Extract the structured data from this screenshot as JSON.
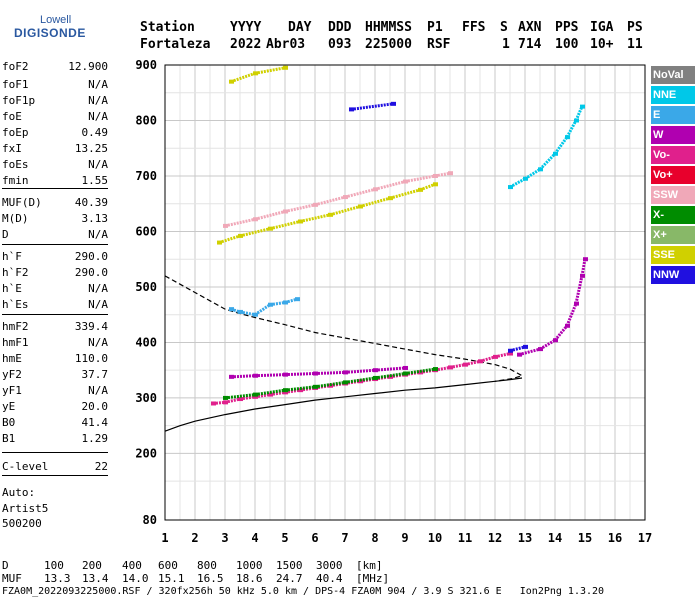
{
  "logo": {
    "line1": "Lowell",
    "line2": "DIGISONDE"
  },
  "header": {
    "labels": [
      "Station",
      "YYYY",
      "DAY",
      "DDD",
      "HHMMSS",
      "P1",
      "FFS",
      "S",
      "AXN",
      "PPS",
      "IGA",
      "PS"
    ],
    "values": [
      "Fortaleza",
      "2022",
      "Abr03",
      "093",
      "225000",
      "RSF",
      "1",
      "714",
      "100",
      "10+",
      "11"
    ]
  },
  "params": [
    {
      "key": "foF2",
      "value": "12.900"
    },
    {
      "key": "foF1",
      "value": "N/A"
    },
    {
      "key": "foF1p",
      "value": "N/A"
    },
    {
      "key": "foE",
      "value": "N/A"
    },
    {
      "key": "foEp",
      "value": "0.49"
    },
    {
      "key": "fxI",
      "value": "13.25"
    },
    {
      "key": "foEs",
      "value": "N/A"
    },
    {
      "key": "fmin",
      "value": "1.55"
    },
    {
      "key": "MUF(D)",
      "value": "40.39"
    },
    {
      "key": "M(D)",
      "value": "3.13"
    },
    {
      "key": "D",
      "value": "N/A"
    },
    {
      "key": "h`F",
      "value": "290.0"
    },
    {
      "key": "h`F2",
      "value": "290.0"
    },
    {
      "key": "h`E",
      "value": "N/A"
    },
    {
      "key": "h`Es",
      "value": "N/A"
    },
    {
      "key": "hmF2",
      "value": "339.4"
    },
    {
      "key": "hmF1",
      "value": "N/A"
    },
    {
      "key": "hmE",
      "value": "110.0"
    },
    {
      "key": "yF2",
      "value": "37.7"
    },
    {
      "key": "yF1",
      "value": "N/A"
    },
    {
      "key": "yE",
      "value": "20.0"
    },
    {
      "key": "B0",
      "value": "41.4"
    },
    {
      "key": "B1",
      "value": "1.29"
    },
    {
      "key": "C-level",
      "value": "22"
    }
  ],
  "auto": {
    "line1": "Auto:",
    "line2": "Artist5",
    "line3": "500200"
  },
  "legend": [
    {
      "label": "NoVal",
      "color": "#808080"
    },
    {
      "label": "NNE",
      "color": "#00c8e8"
    },
    {
      "label": "E",
      "color": "#3aa8e8"
    },
    {
      "label": "W",
      "color": "#b000b0"
    },
    {
      "label": "Vo-",
      "color": "#e0208c"
    },
    {
      "label": "Vo+",
      "color": "#e8002c"
    },
    {
      "label": "SSW",
      "color": "#f0a8b8"
    },
    {
      "label": "X-",
      "color": "#008c00"
    },
    {
      "label": "X+",
      "color": "#88b868"
    },
    {
      "label": "SSE",
      "color": "#d0d000"
    },
    {
      "label": "NNW",
      "color": "#2010e0"
    }
  ],
  "footer": {
    "d_label": "D",
    "d_values": [
      "100",
      "200",
      "400",
      "600",
      "800",
      "1000",
      "1500",
      "3000",
      "[km]"
    ],
    "muf_label": "MUF",
    "muf_values": [
      "13.3",
      "13.4",
      "14.0",
      "15.1",
      "16.5",
      "18.6",
      "24.7",
      "40.4",
      "[MHz]"
    ],
    "file_line": "FZA0M_2022093225000.RSF / 320fx256h 50 kHz 5.0 km / DPS-4 FZA0M 904 / 3.9 S 321.6 E   Ion2Png 1.3.20"
  },
  "chart_data": {
    "type": "scatter",
    "xlabel": "",
    "ylabel": "",
    "xlim": [
      1,
      17
    ],
    "ylim": [
      80,
      900
    ],
    "x_ticks": [
      "1",
      "2",
      "3",
      "4",
      "5",
      "6",
      "7",
      "8",
      "9",
      "10",
      "11",
      "12",
      "13",
      "14",
      "15",
      "16",
      "17"
    ],
    "y_ticks": [
      "80",
      "200",
      "300",
      "400",
      "500",
      "600",
      "700",
      "800",
      "900"
    ],
    "grid": true,
    "series": [
      {
        "name": "Vo-",
        "color": "#e0208c",
        "points": [
          [
            2.6,
            290
          ],
          [
            3.0,
            292
          ],
          [
            3.5,
            298
          ],
          [
            4.0,
            302
          ],
          [
            4.5,
            306
          ],
          [
            5.0,
            310
          ],
          [
            5.5,
            314
          ],
          [
            6.0,
            318
          ],
          [
            6.5,
            322
          ],
          [
            7.0,
            326
          ],
          [
            7.5,
            330
          ],
          [
            8.0,
            334
          ],
          [
            8.5,
            338
          ],
          [
            9.0,
            342
          ],
          [
            9.5,
            346
          ],
          [
            10.0,
            350
          ],
          [
            10.5,
            355
          ],
          [
            11.0,
            360
          ],
          [
            11.5,
            366
          ],
          [
            12.0,
            374
          ],
          [
            12.5,
            380
          ]
        ]
      },
      {
        "name": "W",
        "color": "#b000b0",
        "points": [
          [
            3.2,
            338
          ],
          [
            4.0,
            340
          ],
          [
            5.0,
            342
          ],
          [
            6.0,
            344
          ],
          [
            7.0,
            346
          ],
          [
            8.0,
            350
          ],
          [
            9.0,
            354
          ],
          [
            12.8,
            378
          ],
          [
            13.5,
            388
          ],
          [
            14.0,
            404
          ],
          [
            14.4,
            430
          ],
          [
            14.7,
            470
          ],
          [
            14.9,
            520
          ],
          [
            15.0,
            550
          ]
        ]
      },
      {
        "name": "X-",
        "color": "#008c00",
        "points": [
          [
            3.0,
            300
          ],
          [
            4.0,
            306
          ],
          [
            5.0,
            314
          ],
          [
            6.0,
            320
          ],
          [
            7.0,
            328
          ],
          [
            8.0,
            336
          ],
          [
            9.0,
            344
          ],
          [
            10.0,
            352
          ]
        ]
      },
      {
        "name": "E",
        "color": "#3aa8e8",
        "points": [
          [
            3.2,
            460
          ],
          [
            3.5,
            455
          ],
          [
            4.0,
            450
          ],
          [
            4.5,
            468
          ],
          [
            5.0,
            472
          ],
          [
            5.4,
            478
          ]
        ]
      },
      {
        "name": "SSE",
        "color": "#d0d000",
        "points": [
          [
            2.8,
            580
          ],
          [
            3.5,
            592
          ],
          [
            4.5,
            605
          ],
          [
            5.5,
            618
          ],
          [
            6.5,
            630
          ],
          [
            7.5,
            645
          ],
          [
            8.5,
            660
          ],
          [
            9.5,
            675
          ],
          [
            10.0,
            685
          ],
          [
            3.2,
            870
          ],
          [
            4.0,
            885
          ],
          [
            5.0,
            895
          ]
        ]
      },
      {
        "name": "SSW",
        "color": "#f0a8b8",
        "points": [
          [
            3.0,
            610
          ],
          [
            4.0,
            622
          ],
          [
            5.0,
            636
          ],
          [
            6.0,
            648
          ],
          [
            7.0,
            662
          ],
          [
            8.0,
            676
          ],
          [
            9.0,
            690
          ],
          [
            10.0,
            700
          ],
          [
            10.5,
            705
          ]
        ]
      },
      {
        "name": "NNE",
        "color": "#00c8e8",
        "points": [
          [
            12.5,
            680
          ],
          [
            13.0,
            695
          ],
          [
            13.5,
            712
          ],
          [
            14.0,
            740
          ],
          [
            14.4,
            770
          ],
          [
            14.7,
            800
          ],
          [
            14.9,
            825
          ]
        ]
      },
      {
        "name": "NNW",
        "color": "#2010e0",
        "points": [
          [
            12.5,
            385
          ],
          [
            13.0,
            392
          ],
          [
            7.2,
            820
          ],
          [
            8.6,
            830
          ]
        ]
      }
    ],
    "curves": [
      {
        "name": "dashed",
        "points": [
          [
            1.0,
            520
          ],
          [
            1.5,
            505
          ],
          [
            2.0,
            490
          ],
          [
            2.5,
            475
          ],
          [
            3.0,
            460
          ],
          [
            3.5,
            452
          ],
          [
            4.0,
            445
          ],
          [
            5.0,
            432
          ],
          [
            6.0,
            418
          ],
          [
            7.0,
            408
          ],
          [
            8.0,
            398
          ],
          [
            9.0,
            388
          ],
          [
            10.0,
            378
          ],
          [
            11.0,
            370
          ],
          [
            12.0,
            360
          ],
          [
            12.5,
            352
          ],
          [
            12.9,
            340
          ],
          [
            12.6,
            335
          ],
          [
            12.0,
            330
          ]
        ]
      },
      {
        "name": "solid",
        "points": [
          [
            1.0,
            240
          ],
          [
            1.5,
            250
          ],
          [
            2.0,
            258
          ],
          [
            3.0,
            270
          ],
          [
            4.0,
            280
          ],
          [
            5.0,
            288
          ],
          [
            6.0,
            296
          ],
          [
            7.0,
            302
          ],
          [
            8.0,
            308
          ],
          [
            9.0,
            314
          ],
          [
            10.0,
            318
          ],
          [
            11.0,
            324
          ],
          [
            12.0,
            330
          ],
          [
            12.5,
            333
          ],
          [
            12.9,
            336
          ]
        ]
      }
    ]
  }
}
